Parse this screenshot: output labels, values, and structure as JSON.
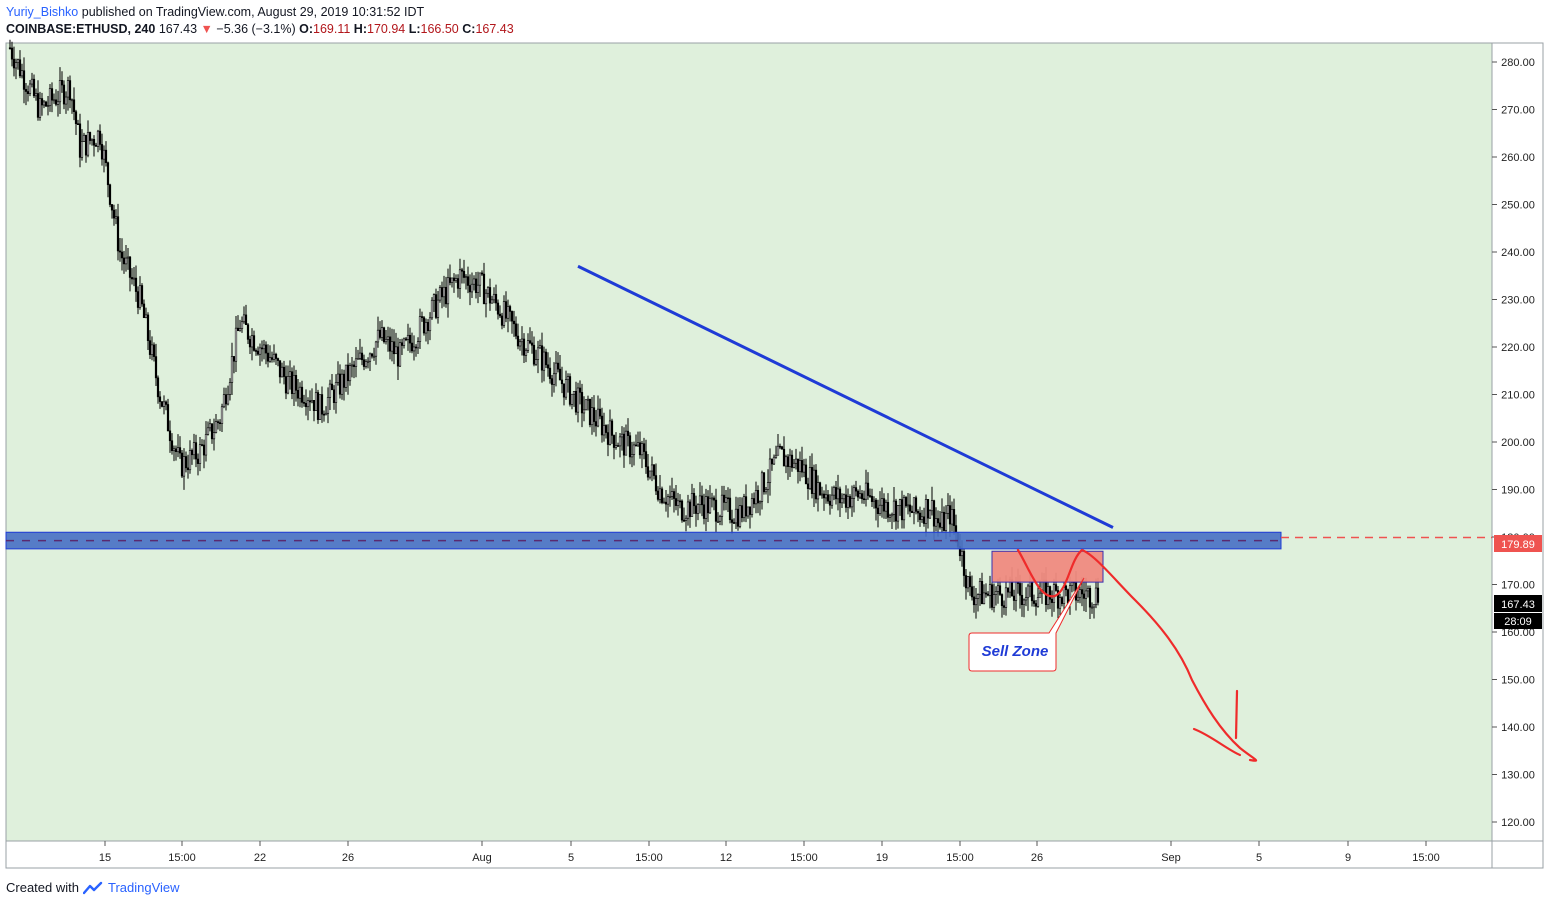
{
  "header": {
    "author": "Yuriy_Bishko",
    "published": "published on TradingView.com, August 29, 2019 10:31:52 IDT",
    "symbol": "COINBASE:ETHUSD, 240",
    "last": "167.43",
    "down_arrow": "▼",
    "change": "−5.36 (−3.1%)",
    "o_label": "O:",
    "o": "169.11",
    "h_label": "H:",
    "h": "170.94",
    "l_label": "L:",
    "l": "166.50",
    "c_label": "C:",
    "c": "167.43"
  },
  "footer": {
    "created": "Created with",
    "brand": "TradingView"
  },
  "colors": {
    "bg": "#dff0dc",
    "candle": "#000000",
    "trendline": "#1f3bd6",
    "support_fill": "#4a72c4",
    "sell_fill": "#ef8a80",
    "arrow": "#ef2b2b",
    "price_line": "#ef5350"
  },
  "chart_data": {
    "type": "candlestick",
    "symbol": "COINBASE:ETHUSD",
    "timeframe": "240",
    "ylim": [
      116,
      284
    ],
    "y_ticks": [
      "280.00",
      "270.00",
      "260.00",
      "250.00",
      "240.00",
      "230.00",
      "220.00",
      "210.00",
      "200.00",
      "190.00",
      "180.00",
      "170.00",
      "160.00",
      "150.00",
      "140.00",
      "130.00",
      "120.00"
    ],
    "x_ticks": [
      "15",
      "15:00",
      "22",
      "26",
      "Aug",
      "5",
      "15:00",
      "12",
      "15:00",
      "19",
      "15:00",
      "26",
      "Sep",
      "5",
      "9",
      "15:00"
    ],
    "price_label": "179.89",
    "last_label": "167.43",
    "countdown_label": "28:09",
    "annotation": "Sell Zone",
    "support_zone": [
      177.5,
      181.0
    ],
    "sell_zone": [
      170.5,
      177.0
    ],
    "trendline": [
      [
        237,
        "Aug 6"
      ],
      [
        182,
        "Aug 29"
      ]
    ],
    "path_points": [
      [
        245,
        283
      ],
      [
        260,
        270
      ],
      [
        275,
        275
      ],
      [
        280,
        262
      ],
      [
        290,
        265
      ],
      [
        300,
        240
      ],
      [
        310,
        230
      ],
      [
        320,
        210
      ],
      [
        330,
        195
      ],
      [
        340,
        198
      ],
      [
        350,
        205
      ],
      [
        360,
        225
      ],
      [
        375,
        218
      ],
      [
        385,
        212
      ],
      [
        395,
        210
      ],
      [
        400,
        207
      ],
      [
        410,
        212
      ],
      [
        420,
        217
      ],
      [
        430,
        222
      ],
      [
        440,
        218
      ],
      [
        450,
        224
      ],
      [
        460,
        230
      ],
      [
        470,
        235
      ],
      [
        480,
        233
      ],
      [
        490,
        228
      ],
      [
        500,
        222
      ],
      [
        510,
        218
      ],
      [
        520,
        213
      ],
      [
        530,
        208
      ],
      [
        540,
        204
      ],
      [
        550,
        200
      ],
      [
        560,
        198
      ],
      [
        570,
        190
      ],
      [
        580,
        186
      ],
      [
        590,
        187
      ],
      [
        600,
        186
      ],
      [
        610,
        185
      ],
      [
        620,
        190
      ],
      [
        630,
        197
      ],
      [
        640,
        195
      ],
      [
        650,
        190
      ],
      [
        660,
        188
      ],
      [
        670,
        189
      ],
      [
        680,
        187
      ],
      [
        690,
        186
      ],
      [
        700,
        185
      ],
      [
        705,
        187
      ],
      [
        710,
        182
      ],
      [
        715,
        185
      ],
      [
        720,
        178
      ],
      [
        725,
        168
      ]
    ]
  }
}
